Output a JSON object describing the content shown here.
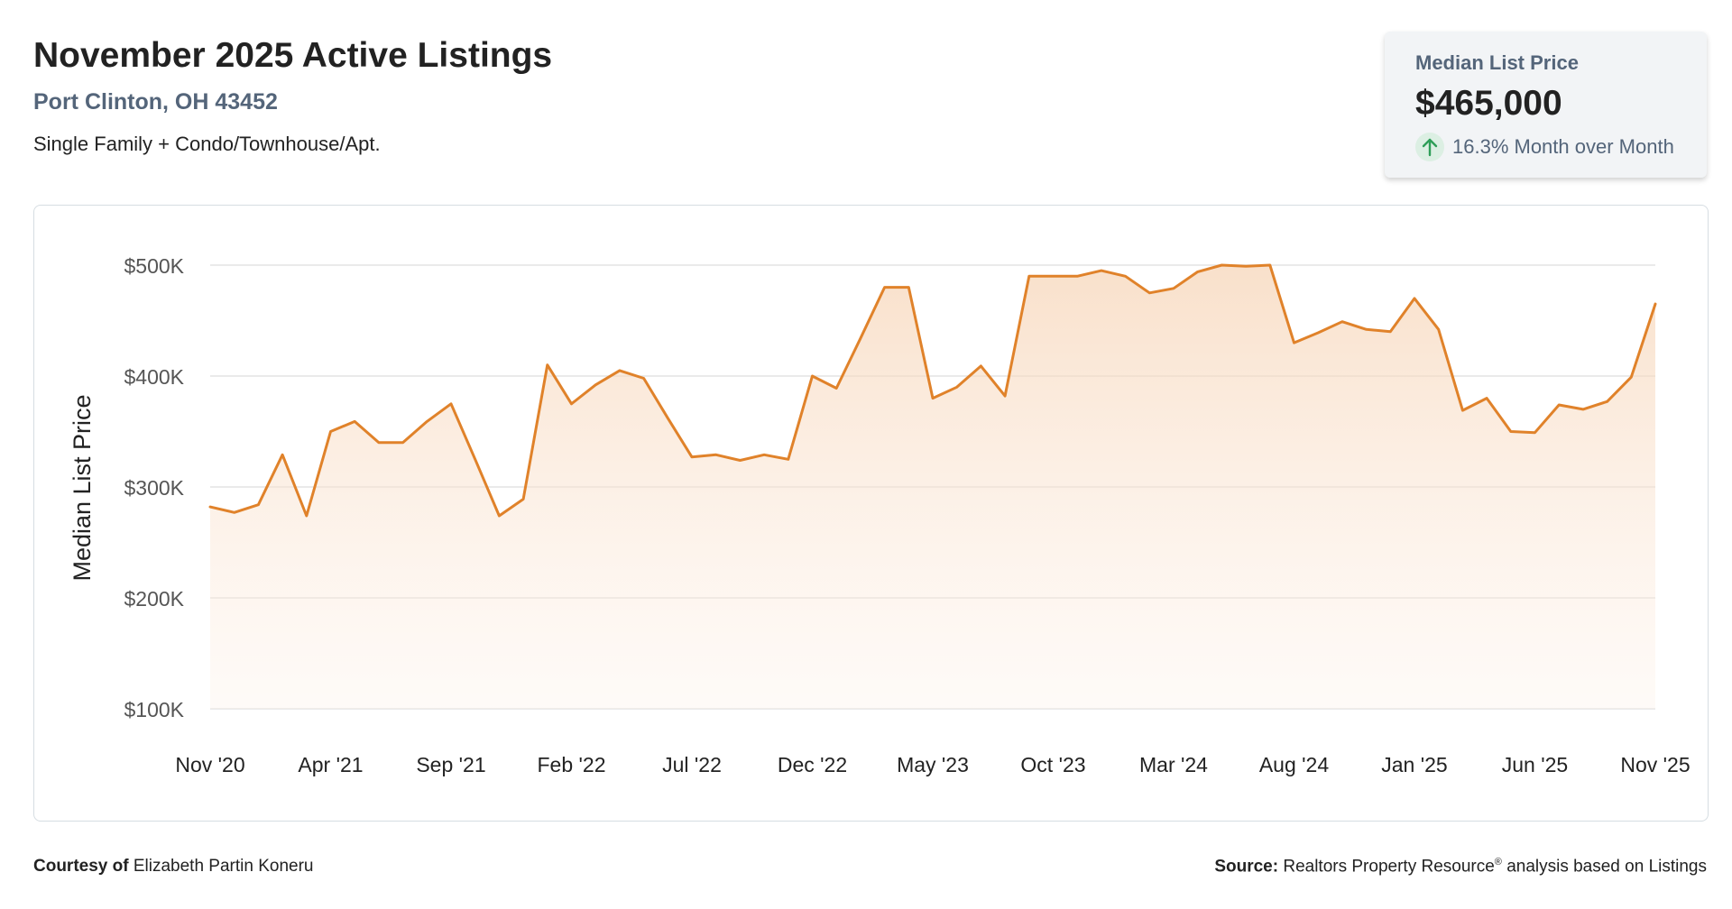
{
  "header": {
    "title": "November 2025 Active Listings",
    "location": "Port Clinton, OH 43452",
    "property_types": "Single Family + Condo/Townhouse/Apt."
  },
  "summary": {
    "label": "Median List Price",
    "value": "$465,000",
    "change": "16.3% Month over Month",
    "change_direction": "up",
    "icon": "arrow-up-icon"
  },
  "colors": {
    "accent": "#e0822a",
    "positive": "#2e9e58",
    "muted": "#54657a"
  },
  "chart_data": {
    "type": "area",
    "ylabel": "Median List Price",
    "xlabel": "",
    "ylim": [
      100000,
      500000
    ],
    "y_ticks": [
      100000,
      200000,
      300000,
      400000,
      500000
    ],
    "y_tick_labels": [
      "$100K",
      "$200K",
      "$300K",
      "$400K",
      "$500K"
    ],
    "x_tick_labels": [
      "Nov '20",
      "Apr '21",
      "Sep '21",
      "Feb '22",
      "Jul '22",
      "Dec '22",
      "May '23",
      "Oct '23",
      "Mar '24",
      "Aug '24",
      "Jan '25",
      "Jun '25",
      "Nov '25"
    ],
    "grid": true,
    "legend": "none",
    "x": [
      "Nov '20",
      "Dec '20",
      "Jan '21",
      "Feb '21",
      "Mar '21",
      "Apr '21",
      "May '21",
      "Jun '21",
      "Jul '21",
      "Aug '21",
      "Sep '21",
      "Oct '21",
      "Nov '21",
      "Dec '21",
      "Jan '22",
      "Feb '22",
      "Mar '22",
      "Apr '22",
      "May '22",
      "Jun '22",
      "Jul '22",
      "Aug '22",
      "Sep '22",
      "Oct '22",
      "Nov '22",
      "Dec '22",
      "Jan '23",
      "Feb '23",
      "Mar '23",
      "Apr '23",
      "May '23",
      "Jun '23",
      "Jul '23",
      "Aug '23",
      "Sep '23",
      "Oct '23",
      "Nov '23",
      "Dec '23",
      "Jan '24",
      "Feb '24",
      "Mar '24",
      "Apr '24",
      "May '24",
      "Jun '24",
      "Jul '24",
      "Aug '24",
      "Sep '24",
      "Oct '24",
      "Nov '24",
      "Dec '24",
      "Jan '25",
      "Feb '25",
      "Mar '25",
      "Apr '25",
      "May '25",
      "Jun '25",
      "Jul '25",
      "Aug '25",
      "Sep '25",
      "Oct '25",
      "Nov '25"
    ],
    "values": [
      282000,
      277000,
      284000,
      329000,
      274000,
      350000,
      359000,
      340000,
      340000,
      359000,
      375000,
      325000,
      274000,
      289000,
      410000,
      375000,
      392000,
      405000,
      398000,
      362000,
      327000,
      329000,
      324000,
      329000,
      325000,
      400000,
      389000,
      434000,
      480000,
      480000,
      380000,
      390000,
      409000,
      382000,
      490000,
      490000,
      490000,
      495000,
      490000,
      475000,
      479000,
      494000,
      500000,
      499000,
      500000,
      430000,
      439000,
      449000,
      442000,
      440000,
      470000,
      442000,
      369000,
      380000,
      350000,
      349000,
      374000,
      370000,
      377000,
      399000,
      465000
    ]
  },
  "footer": {
    "courtesy_label": "Courtesy of",
    "courtesy_name": "Elizabeth Partin Koneru",
    "source_label": "Source:",
    "source_name": "Realtors Property Resource",
    "source_mark": "®",
    "source_rest": "analysis based on Listings"
  }
}
